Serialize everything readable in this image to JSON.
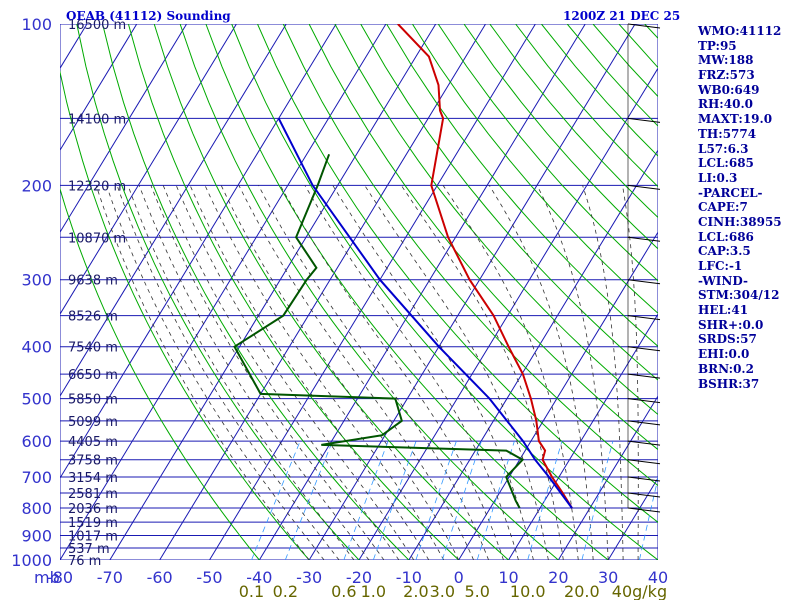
{
  "header": {
    "station_title": "OEAB (41112) Sounding",
    "valid_time": "1200Z 21 DEC 25"
  },
  "stats": [
    "WMO:41112",
    "TP:95",
    "MW:188",
    "FRZ:573",
    "WB0:649",
    "RH:40.0",
    "MAXT:19.0",
    "TH:5774",
    "L57:6.3",
    "LCL:685",
    "LI:0.3",
    "-PARCEL-",
    "CAPE:7",
    "CINH:38955",
    "LCL:686",
    "CAP:3.5",
    "LFC:-1",
    "-WIND-",
    "STM:304/12",
    "HEL:41",
    "SHR+:0.0",
    "SRDS:57",
    "EHI:0.0",
    "BRN:0.2",
    "BSHR:37"
  ],
  "chart_data": {
    "type": "line",
    "subtype": "skew-t log-p sounding",
    "title": "OEAB (41112) Sounding",
    "x_axis_unit_label": "mb",
    "pressure_ticks": [
      100,
      200,
      300,
      400,
      500,
      600,
      700,
      800,
      900,
      1000
    ],
    "pressure_levels": [
      100,
      150,
      200,
      250,
      300,
      350,
      400,
      450,
      500,
      550,
      600,
      650,
      700,
      750,
      800,
      850,
      900,
      950,
      1000
    ],
    "temperature_ticks": [
      "-80",
      "-70",
      "-60",
      "-50",
      "-40",
      "-30",
      "-20",
      "-10",
      "0",
      "10",
      "20",
      "30",
      "40"
    ],
    "temperature_range": [
      -80,
      40
    ],
    "mixing_ratio_labels": [
      "0.1",
      "0.2",
      "0.6",
      "1.0",
      "2.0",
      "3.0",
      "5.0",
      "10.0",
      "20.0",
      "40g/kg"
    ],
    "mixing_ratio_values": [
      0.1,
      0.2,
      0.6,
      1.0,
      2.0,
      3.0,
      5.0,
      10.0,
      20.0,
      40.0
    ],
    "height_labels": [
      {
        "p": 100,
        "label": "16500 m"
      },
      {
        "p": 150,
        "label": "14100 m"
      },
      {
        "p": 200,
        "label": "12320 m"
      },
      {
        "p": 250,
        "label": "10870 m"
      },
      {
        "p": 300,
        "label": "9638 m"
      },
      {
        "p": 350,
        "label": "8526 m"
      },
      {
        "p": 400,
        "label": "7540 m"
      },
      {
        "p": 450,
        "label": "6650 m"
      },
      {
        "p": 500,
        "label": "5850 m"
      },
      {
        "p": 550,
        "label": "5099 m"
      },
      {
        "p": 600,
        "label": "4405 m"
      },
      {
        "p": 650,
        "label": "3758 m"
      },
      {
        "p": 700,
        "label": "3154 m"
      },
      {
        "p": 750,
        "label": "2581 m"
      },
      {
        "p": 800,
        "label": "2036 m"
      },
      {
        "p": 850,
        "label": "1519 m"
      },
      {
        "p": 900,
        "label": "1017 m"
      },
      {
        "p": 950,
        "label": "537 m"
      },
      {
        "p": 1000,
        "label": "76 m"
      }
    ],
    "series": [
      {
        "name": "temperature",
        "color": "#cc0000",
        "points": [
          [
            800,
            16.4
          ],
          [
            750,
            12.7
          ],
          [
            700,
            8.6
          ],
          [
            650,
            4.6
          ],
          [
            625,
            4.0
          ],
          [
            600,
            1.6
          ],
          [
            550,
            -1.4
          ],
          [
            500,
            -5.2
          ],
          [
            450,
            -9.8
          ],
          [
            400,
            -16.0
          ],
          [
            350,
            -22.8
          ],
          [
            300,
            -32.0
          ],
          [
            250,
            -41.5
          ],
          [
            200,
            -51.2
          ],
          [
            150,
            -57.0
          ],
          [
            145,
            -58.6
          ],
          [
            130,
            -62.0
          ],
          [
            115,
            -67.4
          ],
          [
            100,
            -77.6
          ]
        ]
      },
      {
        "name": "dewpoint",
        "color": "#005500",
        "points": [
          [
            800,
            5.9
          ],
          [
            775,
            4.2
          ],
          [
            700,
            -0.6
          ],
          [
            650,
            0.6
          ],
          [
            625,
            -3.8
          ],
          [
            610,
            -41.6
          ],
          [
            585,
            -30.6
          ],
          [
            550,
            -28.4
          ],
          [
            500,
            -32.4
          ],
          [
            490,
            -60.0
          ],
          [
            400,
            -71.0
          ],
          [
            350,
            -65.0
          ],
          [
            300,
            -64.7
          ],
          [
            285,
            -64.2
          ],
          [
            250,
            -72.0
          ],
          [
            200,
            -74.0
          ],
          [
            175,
            -75.5
          ]
        ]
      },
      {
        "name": "parcel",
        "color": "#0000cc",
        "points": [
          [
            800,
            16.4
          ],
          [
            700,
            8.0
          ],
          [
            650,
            3.1
          ],
          [
            600,
            -1.6
          ],
          [
            500,
            -13.5
          ],
          [
            400,
            -30.0
          ],
          [
            300,
            -50.0
          ],
          [
            200,
            -75.0
          ],
          [
            150,
            -90.0
          ]
        ]
      }
    ],
    "wind_barbs": [
      {
        "p": 100
      },
      {
        "p": 150
      },
      {
        "p": 200
      },
      {
        "p": 250
      },
      {
        "p": 300
      },
      {
        "p": 350
      },
      {
        "p": 400
      },
      {
        "p": 450
      },
      {
        "p": 500
      },
      {
        "p": 550
      },
      {
        "p": 600
      },
      {
        "p": 650
      },
      {
        "p": 700
      },
      {
        "p": 750
      },
      {
        "p": 800
      }
    ]
  },
  "colors": {
    "grid": "#1a1ab3",
    "isotherm": "#1a1ab3",
    "dry_adiabat": "#00aa00",
    "moist_adiabat": "#333333",
    "mixing_ratio": "#3399ff",
    "temperature": "#cc0000",
    "dewpoint": "#005500",
    "parcel": "#0000cc"
  }
}
